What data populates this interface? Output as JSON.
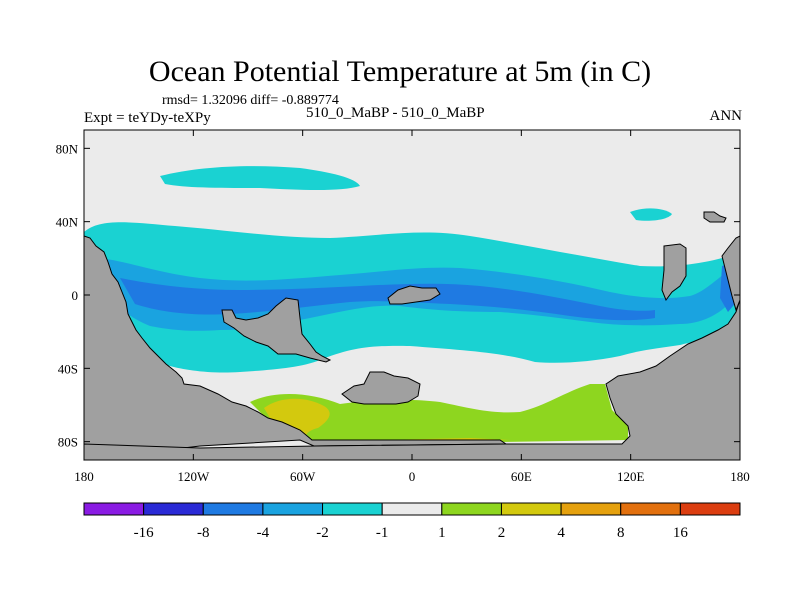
{
  "figure": {
    "title": "Ocean Potential Temperature at 5m (in C)",
    "stats": "rmsd= 1.32096 diff= -0.889774",
    "left_label": "Expt = teYDy-teXPy",
    "center_label": "510_0_MaBP - 510_0_MaBP",
    "right_label": "ANN"
  },
  "map": {
    "lat_ticks": [
      "80N",
      "40N",
      "0",
      "40S",
      "80S"
    ],
    "lon_ticks": [
      "180",
      "120W",
      "60W",
      "0",
      "60E",
      "120E",
      "180"
    ],
    "lat_range": [
      -90,
      90
    ],
    "lon_range": [
      -180,
      180
    ],
    "land_color": "#a0a0a0",
    "fill_default": "#ebebeb"
  },
  "colorbar": {
    "colors": [
      "#8a1be3",
      "#2a2ad6",
      "#1f7ae2",
      "#1aa3e0",
      "#1ad2d2",
      "#ebebeb",
      "#8ed61f",
      "#d3c90e",
      "#e5a10e",
      "#e2700e",
      "#db3d10"
    ],
    "labels": [
      "-16",
      "-8",
      "-4",
      "-2",
      "-1",
      "1",
      "2",
      "4",
      "8",
      "16"
    ]
  }
}
